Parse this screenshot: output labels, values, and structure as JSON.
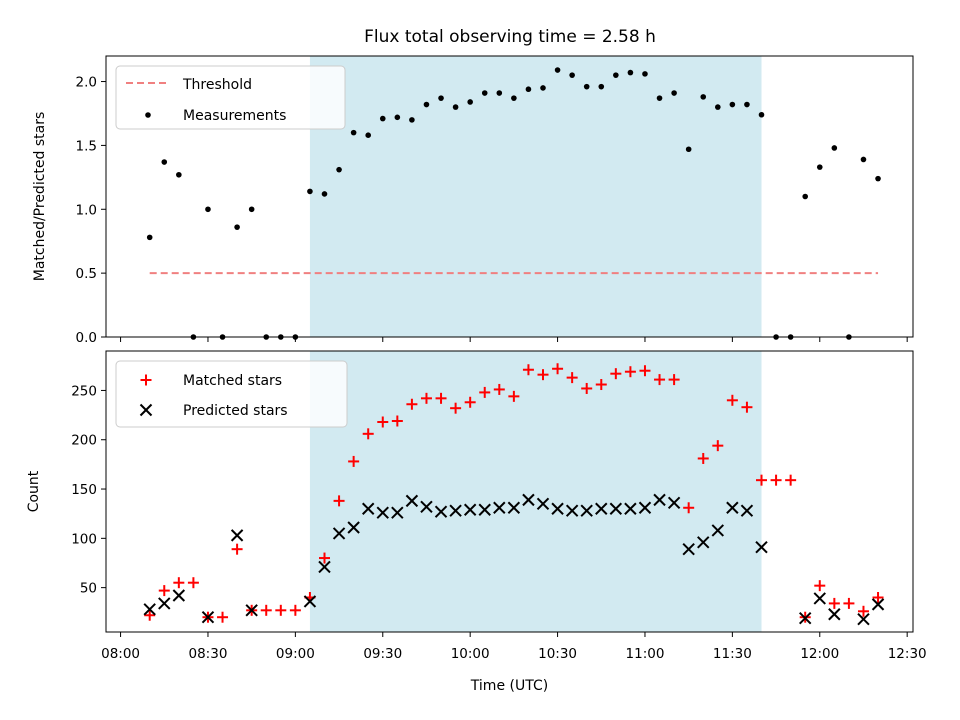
{
  "chart_data": [
    {
      "type": "scatter",
      "title": "Flux total observing time = 2.58 h",
      "ylabel": "Matched/Predicted stars",
      "xlabel": "",
      "ylim": [
        0,
        2.2
      ],
      "yticks": [
        0.0,
        0.5,
        1.0,
        1.5,
        2.0
      ],
      "ytick_labels": [
        "0.0",
        "0.5",
        "1.0",
        "1.5",
        "2.0"
      ],
      "legend_position": "top-left",
      "shaded_region": {
        "start": "09:05",
        "end": "11:40",
        "color": "#add8e6"
      },
      "threshold": {
        "name": "Threshold",
        "value": 0.5,
        "start": "08:10",
        "end": "12:20",
        "color": "#f08080"
      },
      "series": [
        {
          "name": "Measurements",
          "color": "#000000",
          "marker": "dot",
          "x": [
            "08:10",
            "08:15",
            "08:20",
            "08:25",
            "08:30",
            "08:35",
            "08:40",
            "08:45",
            "08:50",
            "08:55",
            "09:00",
            "09:05",
            "09:10",
            "09:15",
            "09:20",
            "09:25",
            "09:30",
            "09:35",
            "09:40",
            "09:45",
            "09:50",
            "09:55",
            "10:00",
            "10:05",
            "10:10",
            "10:15",
            "10:20",
            "10:25",
            "10:30",
            "10:35",
            "10:40",
            "10:45",
            "10:50",
            "10:55",
            "11:00",
            "11:05",
            "11:10",
            "11:15",
            "11:20",
            "11:25",
            "11:30",
            "11:35",
            "11:40",
            "11:45",
            "11:50",
            "11:55",
            "12:00",
            "12:05",
            "12:10",
            "12:15",
            "12:20"
          ],
          "y": [
            0.78,
            1.37,
            1.27,
            0.0,
            1.0,
            0.0,
            0.86,
            1.0,
            0.0,
            0.0,
            0.0,
            1.14,
            1.12,
            1.31,
            1.6,
            1.58,
            1.71,
            1.72,
            1.7,
            1.82,
            1.87,
            1.8,
            1.84,
            1.91,
            1.91,
            1.87,
            1.94,
            1.95,
            2.09,
            2.05,
            1.96,
            1.96,
            2.05,
            2.07,
            2.06,
            1.87,
            1.91,
            1.47,
            1.88,
            1.8,
            1.82,
            1.82,
            1.74,
            0.0,
            0.0,
            1.1,
            1.33,
            1.48,
            0.0,
            1.39,
            1.24
          ]
        }
      ]
    },
    {
      "type": "scatter",
      "title": "",
      "ylabel": "Count",
      "xlabel": "Time (UTC)",
      "ylim": [
        5,
        290
      ],
      "yticks": [
        50,
        100,
        150,
        200,
        250
      ],
      "ytick_labels": [
        "50",
        "100",
        "150",
        "200",
        "250"
      ],
      "xlim": [
        "07:55",
        "12:32"
      ],
      "xticks": [
        "08:00",
        "08:30",
        "09:00",
        "09:30",
        "10:00",
        "10:30",
        "11:00",
        "11:30",
        "12:00",
        "12:30"
      ],
      "legend_position": "top-left",
      "shaded_region": {
        "start": "09:05",
        "end": "11:40",
        "color": "#add8e6"
      },
      "series": [
        {
          "name": "Matched stars",
          "color": "#ff0000",
          "marker": "plus",
          "x": [
            "08:10",
            "08:15",
            "08:20",
            "08:25",
            "08:30",
            "08:35",
            "08:40",
            "08:45",
            "08:50",
            "08:55",
            "09:00",
            "09:05",
            "09:10",
            "09:15",
            "09:20",
            "09:25",
            "09:30",
            "09:35",
            "09:40",
            "09:45",
            "09:50",
            "09:55",
            "10:00",
            "10:05",
            "10:10",
            "10:15",
            "10:20",
            "10:25",
            "10:30",
            "10:35",
            "10:40",
            "10:45",
            "10:50",
            "10:55",
            "11:00",
            "11:05",
            "11:10",
            "11:15",
            "11:20",
            "11:25",
            "11:30",
            "11:35",
            "11:40",
            "11:45",
            "11:50",
            "11:55",
            "12:00",
            "12:05",
            "12:10",
            "12:15",
            "12:20"
          ],
          "y": [
            22,
            47,
            55,
            55,
            20,
            20,
            89,
            27,
            27,
            27,
            27,
            40,
            80,
            138,
            178,
            206,
            218,
            219,
            236,
            242,
            242,
            232,
            238,
            248,
            251,
            244,
            271,
            266,
            272,
            263,
            252,
            256,
            267,
            269,
            270,
            261,
            261,
            131,
            181,
            194,
            240,
            233,
            159,
            159,
            159,
            20,
            52,
            34,
            34,
            26,
            40
          ]
        },
        {
          "name": "Predicted stars",
          "color": "#000000",
          "marker": "x",
          "x": [
            "08:10",
            "08:15",
            "08:20",
            "08:30",
            "08:40",
            "08:45",
            "09:05",
            "09:10",
            "09:15",
            "09:20",
            "09:25",
            "09:30",
            "09:35",
            "09:40",
            "09:45",
            "09:50",
            "09:55",
            "10:00",
            "10:05",
            "10:10",
            "10:15",
            "10:20",
            "10:25",
            "10:30",
            "10:35",
            "10:40",
            "10:45",
            "10:50",
            "10:55",
            "11:00",
            "11:05",
            "11:10",
            "11:15",
            "11:20",
            "11:25",
            "11:30",
            "11:35",
            "11:40",
            "11:55",
            "12:00",
            "12:05",
            "12:15",
            "12:20"
          ],
          "y": [
            28,
            34,
            42,
            20,
            103,
            27,
            36,
            71,
            105,
            111,
            130,
            126,
            126,
            138,
            132,
            127,
            128,
            129,
            129,
            131,
            131,
            139,
            135,
            130,
            128,
            128,
            130,
            130,
            130,
            131,
            139,
            136,
            89,
            96,
            108,
            131,
            128,
            91,
            19,
            39,
            23,
            18,
            33
          ]
        }
      ]
    }
  ]
}
